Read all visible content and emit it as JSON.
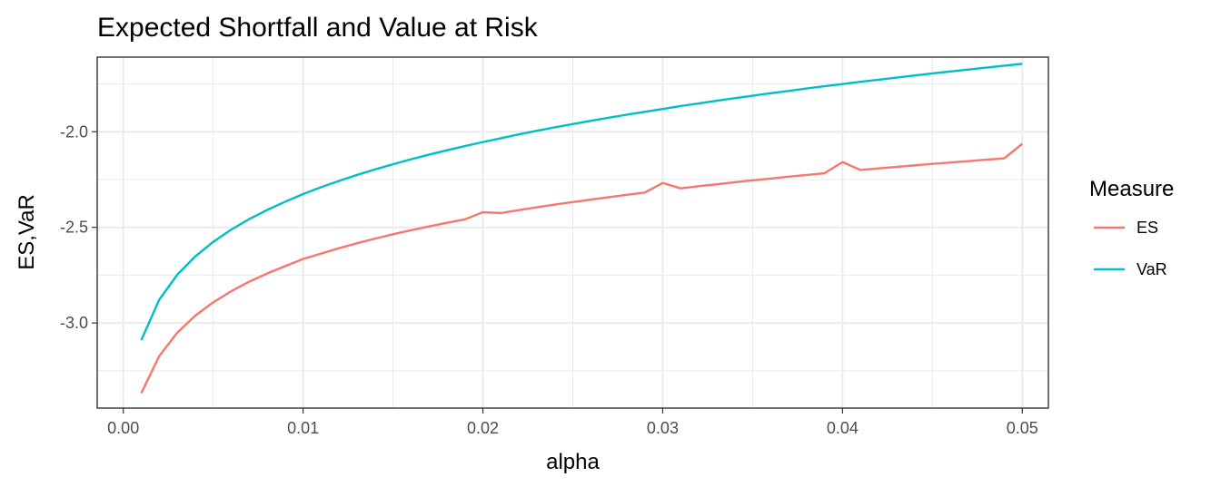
{
  "chart_data": {
    "type": "line",
    "title": "Expected Shortfall and Value at Risk",
    "xlabel": "alpha",
    "ylabel": "ES,VaR",
    "xlim": [
      -0.00145,
      0.05145
    ],
    "ylim": [
      -3.445,
      -1.61
    ],
    "x_ticks": [
      0.0,
      0.01,
      0.02,
      0.03,
      0.04,
      0.05
    ],
    "x_tick_labels": [
      "0.00",
      "0.01",
      "0.02",
      "0.03",
      "0.04",
      "0.05"
    ],
    "y_ticks": [
      -3.0,
      -2.5,
      -2.0
    ],
    "y_tick_labels": [
      "-3.0",
      "-2.5",
      "-2.0"
    ],
    "grid": true,
    "legend": {
      "title": "Measure",
      "position": "right"
    },
    "x": [
      0.001,
      0.002,
      0.003,
      0.004,
      0.005,
      0.006,
      0.007,
      0.008,
      0.009,
      0.01,
      0.011,
      0.012,
      0.013,
      0.014,
      0.015,
      0.016,
      0.017,
      0.018,
      0.019,
      0.02,
      0.021,
      0.022,
      0.023,
      0.024,
      0.025,
      0.026,
      0.027,
      0.028,
      0.029,
      0.03,
      0.031,
      0.032,
      0.033,
      0.034,
      0.035,
      0.036,
      0.037,
      0.038,
      0.039,
      0.04,
      0.041,
      0.042,
      0.043,
      0.044,
      0.045,
      0.046,
      0.047,
      0.048,
      0.049,
      0.05
    ],
    "series": [
      {
        "name": "ES",
        "color": "#F8766D",
        "values": [
          -3.367,
          -3.173,
          -3.051,
          -2.962,
          -2.892,
          -2.834,
          -2.784,
          -2.741,
          -2.703,
          -2.665,
          -2.637,
          -2.609,
          -2.583,
          -2.559,
          -2.536,
          -2.515,
          -2.495,
          -2.476,
          -2.458,
          -2.421,
          -2.425,
          -2.41,
          -2.395,
          -2.381,
          -2.368,
          -2.355,
          -2.342,
          -2.33,
          -2.318,
          -2.268,
          -2.296,
          -2.285,
          -2.275,
          -2.264,
          -2.254,
          -2.245,
          -2.235,
          -2.226,
          -2.217,
          -2.159,
          -2.2,
          -2.192,
          -2.184,
          -2.176,
          -2.168,
          -2.161,
          -2.154,
          -2.146,
          -2.139,
          -2.063
        ]
      },
      {
        "name": "VaR",
        "color": "#00BFC4",
        "values": [
          -3.09,
          -2.878,
          -2.748,
          -2.652,
          -2.576,
          -2.512,
          -2.457,
          -2.409,
          -2.366,
          -2.326,
          -2.29,
          -2.257,
          -2.226,
          -2.197,
          -2.17,
          -2.144,
          -2.12,
          -2.097,
          -2.075,
          -2.054,
          -2.034,
          -2.014,
          -1.995,
          -1.977,
          -1.96,
          -1.943,
          -1.927,
          -1.911,
          -1.896,
          -1.881,
          -1.866,
          -1.852,
          -1.838,
          -1.825,
          -1.812,
          -1.799,
          -1.787,
          -1.774,
          -1.762,
          -1.751,
          -1.739,
          -1.728,
          -1.717,
          -1.706,
          -1.695,
          -1.685,
          -1.675,
          -1.665,
          -1.655,
          -1.645
        ]
      }
    ]
  }
}
